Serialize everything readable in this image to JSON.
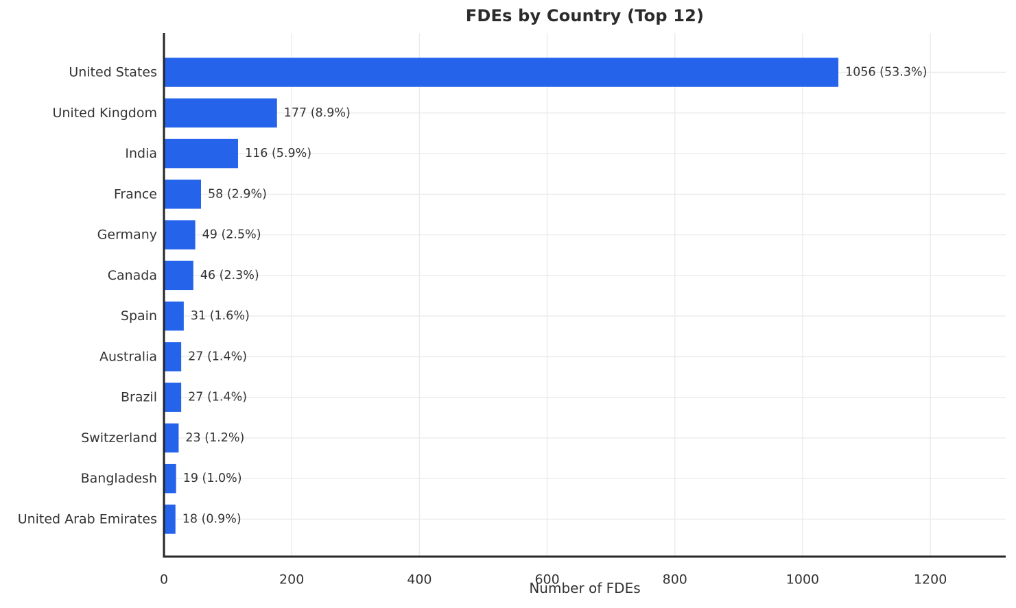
{
  "title": "FDEs by Country (Top 12)",
  "chart_data": {
    "type": "bar",
    "orientation": "horizontal",
    "title": "FDEs by Country (Top 12)",
    "xlabel": "Number of FDEs",
    "ylabel": "",
    "categories": [
      "United States",
      "United Kingdom",
      "India",
      "France",
      "Germany",
      "Canada",
      "Spain",
      "Australia",
      "Brazil",
      "Switzerland",
      "Bangladesh",
      "United Arab Emirates"
    ],
    "values": [
      1056,
      177,
      116,
      58,
      49,
      46,
      31,
      27,
      27,
      23,
      19,
      18
    ],
    "bar_labels": [
      "1056 (53.3%)",
      "177 (8.9%)",
      "116 (5.9%)",
      "58 (2.9%)",
      "49 (2.5%)",
      "46 (2.3%)",
      "31 (1.6%)",
      "27 (1.4%)",
      "27 (1.4%)",
      "23 (1.2%)",
      "19 (1.0%)",
      "18 (0.9%)"
    ],
    "xticks": [
      "0",
      "200",
      "400",
      "600",
      "800",
      "1000",
      "1200"
    ],
    "xtick_values": [
      0,
      200,
      400,
      600,
      800,
      1000,
      1200
    ],
    "xlim": [
      0,
      1318
    ],
    "grid": true,
    "legend_position": "none",
    "colors": {
      "bar": "#2563eb",
      "grid": "#ebebeb",
      "spine": "#262626",
      "text": "#333333",
      "title": "#2b2b2b",
      "background": "#ffffff"
    }
  }
}
